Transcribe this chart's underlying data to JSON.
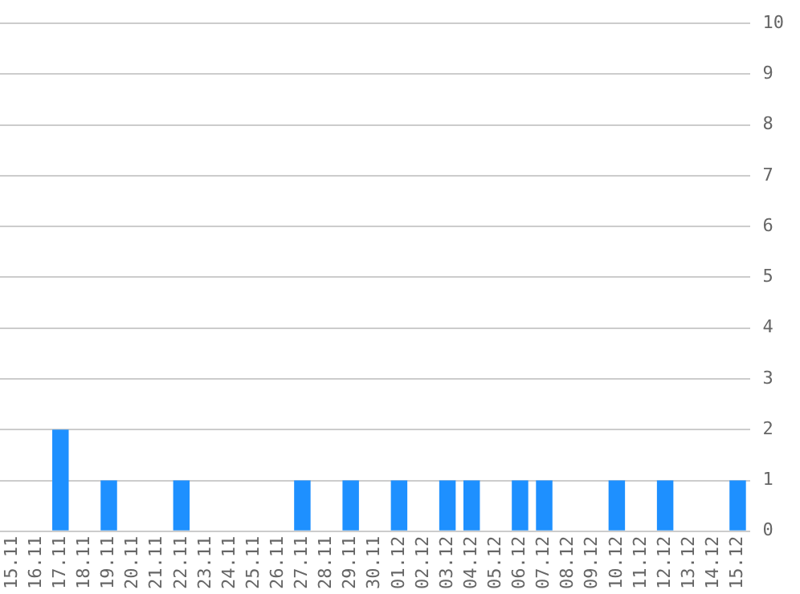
{
  "chart_data": {
    "type": "bar",
    "categories": [
      "15.11",
      "16.11",
      "17.11",
      "18.11",
      "19.11",
      "20.11",
      "21.11",
      "22.11",
      "23.11",
      "24.11",
      "25.11",
      "26.11",
      "27.11",
      "28.11",
      "29.11",
      "30.11",
      "01.12",
      "02.12",
      "03.12",
      "04.12",
      "05.12",
      "06.12",
      "07.12",
      "08.12",
      "09.12",
      "10.12",
      "11.12",
      "12.12",
      "13.12",
      "14.12",
      "15.12"
    ],
    "values": [
      0,
      0,
      2,
      0,
      1,
      0,
      0,
      1,
      0,
      0,
      0,
      0,
      1,
      0,
      1,
      0,
      1,
      0,
      1,
      1,
      0,
      1,
      1,
      0,
      0,
      1,
      0,
      1,
      0,
      0,
      1
    ],
    "color": "#1e90ff",
    "ylim": [
      0,
      10
    ],
    "yticks": [
      0,
      1,
      2,
      3,
      4,
      5,
      6,
      7,
      8,
      9,
      10
    ],
    "grid": "y",
    "legend": false
  }
}
